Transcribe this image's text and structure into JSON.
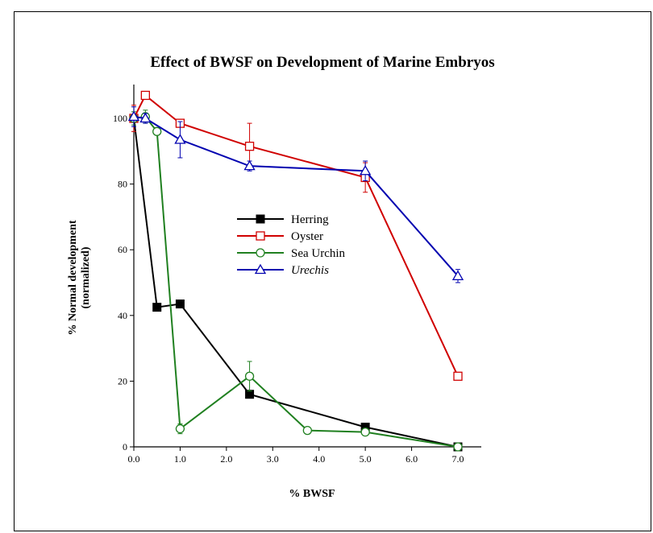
{
  "chart_data": {
    "type": "line",
    "title": "Effect of BWSF on Development of Marine Embryos",
    "xlabel": "% BWSF",
    "ylabel_lines": [
      "% Normal development",
      "(normalized)"
    ],
    "xlim": [
      0,
      7.5
    ],
    "ylim": [
      0,
      110
    ],
    "x_ticks": [
      0,
      1,
      2,
      3,
      4,
      5,
      6,
      7
    ],
    "x_tick_labels": [
      "0.0",
      "1.0",
      "2.0",
      "3.0",
      "4.0",
      "5.0",
      "6.0",
      "7.0"
    ],
    "y_ticks": [
      0,
      20,
      40,
      60,
      80,
      100
    ],
    "y_tick_labels": [
      "0",
      "20",
      "40",
      "60",
      "80",
      "100"
    ],
    "grid": false,
    "legend_position": "center",
    "series": [
      {
        "name": "Herring",
        "italic": false,
        "color": "#000000",
        "marker": "square-filled",
        "x": [
          0,
          0.5,
          1,
          2.5,
          5,
          7
        ],
        "y": [
          100,
          42.5,
          43.5,
          16,
          6,
          0
        ],
        "err": [
          0,
          0,
          0,
          0,
          0,
          0
        ]
      },
      {
        "name": "Oyster",
        "italic": false,
        "color": "#d00000",
        "marker": "square-open",
        "x": [
          0,
          0.25,
          1,
          2.5,
          5,
          7
        ],
        "y": [
          100,
          107,
          98.5,
          91.5,
          82,
          21.5
        ],
        "err": [
          4,
          0,
          0,
          7,
          4.5,
          0
        ]
      },
      {
        "name": "Sea Urchin",
        "italic": false,
        "color": "#208020",
        "marker": "circle-open",
        "x": [
          0,
          0.25,
          0.5,
          1,
          2.5,
          3.75,
          5,
          7
        ],
        "y": [
          100,
          100.5,
          96,
          5.5,
          21.5,
          5,
          4.5,
          0
        ],
        "err": [
          2,
          2,
          0,
          1.5,
          4.5,
          0,
          0,
          0
        ]
      },
      {
        "name": "Urechis",
        "italic": true,
        "color": "#0000b0",
        "marker": "triangle-open",
        "x": [
          0,
          0.25,
          1,
          2.5,
          5,
          7
        ],
        "y": [
          100.5,
          100,
          93.5,
          85.5,
          84,
          52
        ],
        "err": [
          3,
          1.5,
          5.5,
          1.5,
          3,
          2
        ]
      }
    ]
  }
}
